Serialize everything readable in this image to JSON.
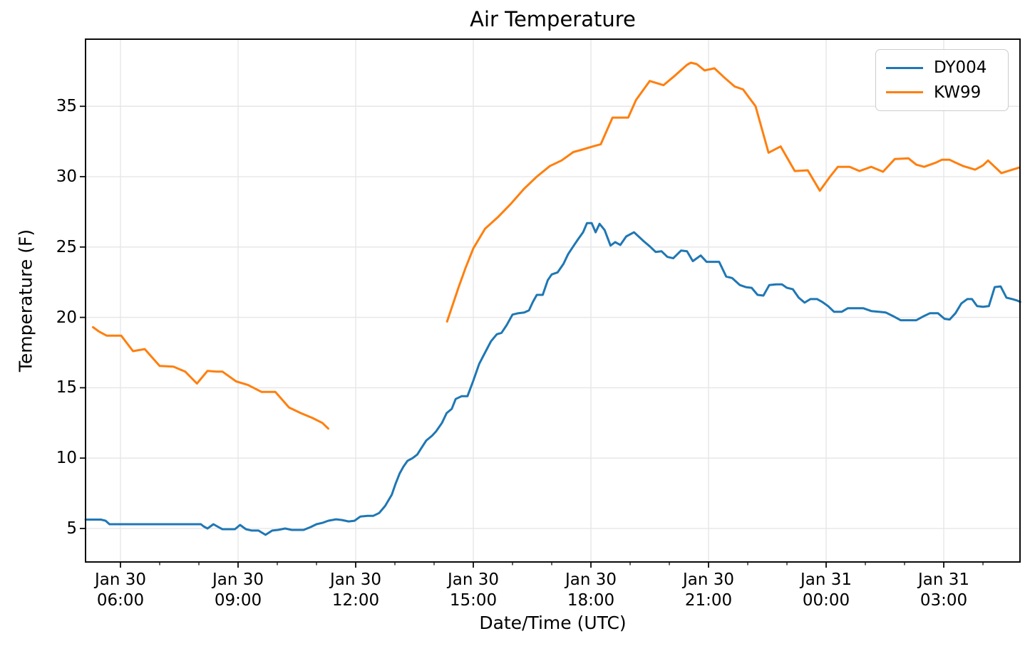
{
  "chart_data": {
    "type": "line",
    "title": "Air Temperature",
    "xlabel": "Date/Time (UTC)",
    "ylabel": "Temperature (F)",
    "x_unit": "hours_since_Jan30_0000_UTC",
    "xlim": [
      5.109,
      28.945
    ],
    "ylim": [
      2.62,
      39.77
    ],
    "grid": true,
    "grid_color": "#e6e6e6",
    "legend_position": "upper right",
    "y_ticks": [
      5,
      10,
      15,
      20,
      25,
      30,
      35
    ],
    "x_major_ticks": [
      {
        "t": 6,
        "label": "Jan 30\n06:00"
      },
      {
        "t": 9,
        "label": "Jan 30\n09:00"
      },
      {
        "t": 12,
        "label": "Jan 30\n12:00"
      },
      {
        "t": 15,
        "label": "Jan 30\n15:00"
      },
      {
        "t": 18,
        "label": "Jan 30\n18:00"
      },
      {
        "t": 21,
        "label": "Jan 30\n21:00"
      },
      {
        "t": 24,
        "label": "Jan 31\n00:00"
      },
      {
        "t": 27,
        "label": "Jan 31\n03:00"
      }
    ],
    "x_minor_ticks": [
      7,
      8,
      10,
      11,
      13,
      14,
      16,
      17,
      19,
      20,
      22,
      23,
      25,
      26,
      28
    ],
    "series": [
      {
        "name": "DY004",
        "color": "#1f77b4",
        "segments": [
          [
            [
              5.11,
              5.63
            ],
            [
              5.3,
              5.63
            ],
            [
              5.5,
              5.63
            ],
            [
              5.62,
              5.55
            ],
            [
              5.72,
              5.3
            ],
            [
              6.0,
              5.3
            ],
            [
              6.3,
              5.3
            ],
            [
              6.6,
              5.3
            ],
            [
              6.9,
              5.3
            ],
            [
              7.2,
              5.3
            ],
            [
              7.5,
              5.3
            ],
            [
              7.8,
              5.3
            ],
            [
              8.05,
              5.3
            ],
            [
              8.12,
              5.15
            ],
            [
              8.22,
              5.0
            ],
            [
              8.37,
              5.3
            ],
            [
              8.5,
              5.1
            ],
            [
              8.6,
              4.95
            ],
            [
              8.75,
              4.95
            ],
            [
              8.92,
              4.95
            ],
            [
              9.05,
              5.25
            ],
            [
              9.2,
              4.95
            ],
            [
              9.35,
              4.85
            ],
            [
              9.52,
              4.85
            ],
            [
              9.7,
              4.55
            ],
            [
              9.87,
              4.85
            ],
            [
              10.02,
              4.9
            ],
            [
              10.2,
              5.0
            ],
            [
              10.37,
              4.9
            ],
            [
              10.52,
              4.9
            ],
            [
              10.67,
              4.9
            ],
            [
              10.85,
              5.1
            ],
            [
              11.0,
              5.3
            ],
            [
              11.15,
              5.4
            ],
            [
              11.3,
              5.55
            ],
            [
              11.5,
              5.65
            ],
            [
              11.65,
              5.6
            ],
            [
              11.82,
              5.5
            ],
            [
              11.97,
              5.55
            ],
            [
              12.12,
              5.85
            ],
            [
              12.3,
              5.9
            ],
            [
              12.45,
              5.9
            ],
            [
              12.6,
              6.1
            ],
            [
              12.75,
              6.6
            ],
            [
              12.92,
              7.4
            ],
            [
              13.02,
              8.2
            ],
            [
              13.12,
              8.9
            ],
            [
              13.22,
              9.4
            ],
            [
              13.32,
              9.8
            ],
            [
              13.45,
              10.0
            ],
            [
              13.57,
              10.25
            ],
            [
              13.67,
              10.7
            ],
            [
              13.8,
              11.25
            ],
            [
              13.95,
              11.6
            ],
            [
              14.05,
              11.9
            ],
            [
              14.2,
              12.5
            ],
            [
              14.32,
              13.2
            ],
            [
              14.45,
              13.5
            ],
            [
              14.55,
              14.2
            ],
            [
              14.7,
              14.4
            ],
            [
              14.85,
              14.4
            ],
            [
              15.0,
              15.5
            ],
            [
              15.15,
              16.7
            ],
            [
              15.3,
              17.5
            ],
            [
              15.45,
              18.3
            ],
            [
              15.6,
              18.8
            ],
            [
              15.72,
              18.9
            ],
            [
              15.85,
              19.45
            ],
            [
              16.0,
              20.2
            ],
            [
              16.15,
              20.3
            ],
            [
              16.3,
              20.35
            ],
            [
              16.42,
              20.5
            ],
            [
              16.52,
              21.1
            ],
            [
              16.62,
              21.6
            ],
            [
              16.77,
              21.6
            ],
            [
              16.9,
              22.65
            ],
            [
              17.0,
              23.05
            ],
            [
              17.15,
              23.2
            ],
            [
              17.3,
              23.8
            ],
            [
              17.42,
              24.5
            ],
            [
              17.55,
              25.05
            ],
            [
              17.67,
              25.55
            ],
            [
              17.8,
              26.05
            ],
            [
              17.9,
              26.7
            ],
            [
              18.02,
              26.7
            ],
            [
              18.12,
              26.05
            ],
            [
              18.22,
              26.65
            ],
            [
              18.35,
              26.2
            ],
            [
              18.5,
              25.1
            ],
            [
              18.62,
              25.35
            ],
            [
              18.75,
              25.15
            ],
            [
              18.9,
              25.75
            ],
            [
              19.1,
              26.05
            ],
            [
              19.35,
              25.4
            ],
            [
              19.5,
              25.05
            ],
            [
              19.65,
              24.65
            ],
            [
              19.8,
              24.7
            ],
            [
              19.95,
              24.3
            ],
            [
              20.1,
              24.2
            ],
            [
              20.3,
              24.75
            ],
            [
              20.45,
              24.7
            ],
            [
              20.6,
              24.0
            ],
            [
              20.8,
              24.4
            ],
            [
              20.95,
              23.95
            ],
            [
              21.1,
              23.95
            ],
            [
              21.27,
              23.95
            ],
            [
              21.45,
              22.9
            ],
            [
              21.6,
              22.8
            ],
            [
              21.8,
              22.3
            ],
            [
              21.95,
              22.15
            ],
            [
              22.1,
              22.1
            ],
            [
              22.25,
              21.6
            ],
            [
              22.4,
              21.55
            ],
            [
              22.55,
              22.3
            ],
            [
              22.72,
              22.35
            ],
            [
              22.87,
              22.35
            ],
            [
              23.0,
              22.1
            ],
            [
              23.15,
              22.0
            ],
            [
              23.3,
              21.4
            ],
            [
              23.45,
              21.05
            ],
            [
              23.6,
              21.3
            ],
            [
              23.77,
              21.3
            ],
            [
              23.9,
              21.1
            ],
            [
              24.05,
              20.8
            ],
            [
              24.2,
              20.4
            ],
            [
              24.4,
              20.4
            ],
            [
              24.55,
              20.65
            ],
            [
              24.75,
              20.65
            ],
            [
              24.95,
              20.65
            ],
            [
              25.15,
              20.45
            ],
            [
              25.35,
              20.4
            ],
            [
              25.52,
              20.35
            ],
            [
              25.7,
              20.1
            ],
            [
              25.9,
              19.8
            ],
            [
              26.1,
              19.8
            ],
            [
              26.3,
              19.8
            ],
            [
              26.5,
              20.1
            ],
            [
              26.65,
              20.3
            ],
            [
              26.85,
              20.3
            ],
            [
              27.02,
              19.9
            ],
            [
              27.15,
              19.85
            ],
            [
              27.3,
              20.3
            ],
            [
              27.45,
              21.0
            ],
            [
              27.6,
              21.3
            ],
            [
              27.72,
              21.3
            ],
            [
              27.85,
              20.8
            ],
            [
              28.0,
              20.75
            ],
            [
              28.15,
              20.8
            ],
            [
              28.3,
              22.15
            ],
            [
              28.45,
              22.2
            ],
            [
              28.6,
              21.4
            ],
            [
              28.75,
              21.3
            ],
            [
              28.87,
              21.2
            ],
            [
              28.95,
              21.1
            ]
          ]
        ]
      },
      {
        "name": "KW99",
        "color": "#ff7f0e",
        "segments": [
          [
            [
              5.3,
              19.3
            ],
            [
              5.45,
              19.0
            ],
            [
              5.65,
              18.7
            ],
            [
              5.85,
              18.7
            ],
            [
              6.02,
              18.7
            ],
            [
              6.32,
              17.6
            ],
            [
              6.62,
              17.75
            ],
            [
              7.0,
              16.55
            ],
            [
              7.35,
              16.5
            ],
            [
              7.65,
              16.15
            ],
            [
              7.95,
              15.3
            ],
            [
              8.22,
              16.2
            ],
            [
              8.45,
              16.15
            ],
            [
              8.6,
              16.15
            ],
            [
              8.95,
              15.45
            ],
            [
              9.25,
              15.2
            ],
            [
              9.6,
              14.7
            ],
            [
              9.95,
              14.7
            ],
            [
              10.3,
              13.6
            ],
            [
              10.6,
              13.2
            ],
            [
              10.9,
              12.85
            ],
            [
              11.15,
              12.5
            ],
            [
              11.3,
              12.1
            ]
          ],
          [
            [
              14.33,
              19.7
            ],
            [
              14.62,
              22.1
            ],
            [
              14.8,
              23.5
            ],
            [
              15.0,
              24.9
            ],
            [
              15.3,
              26.3
            ],
            [
              15.62,
              27.1
            ],
            [
              15.95,
              28.05
            ],
            [
              16.3,
              29.15
            ],
            [
              16.62,
              30.0
            ],
            [
              16.95,
              30.75
            ],
            [
              17.25,
              31.15
            ],
            [
              17.55,
              31.75
            ],
            [
              17.75,
              31.9
            ],
            [
              18.05,
              32.15
            ],
            [
              18.25,
              32.3
            ],
            [
              18.55,
              34.2
            ],
            [
              18.95,
              34.2
            ],
            [
              19.15,
              35.45
            ],
            [
              19.5,
              36.8
            ],
            [
              19.85,
              36.5
            ],
            [
              20.15,
              37.2
            ],
            [
              20.45,
              37.95
            ],
            [
              20.55,
              38.1
            ],
            [
              20.7,
              38.0
            ],
            [
              20.9,
              37.55
            ],
            [
              21.15,
              37.7
            ],
            [
              21.4,
              37.05
            ],
            [
              21.67,
              36.4
            ],
            [
              21.88,
              36.2
            ],
            [
              22.2,
              35.0
            ],
            [
              22.53,
              31.7
            ],
            [
              22.84,
              32.15
            ],
            [
              23.2,
              30.4
            ],
            [
              23.53,
              30.45
            ],
            [
              23.84,
              29.0
            ],
            [
              24.1,
              30.0
            ],
            [
              24.3,
              30.7
            ],
            [
              24.6,
              30.7
            ],
            [
              24.85,
              30.4
            ],
            [
              25.15,
              30.7
            ],
            [
              25.45,
              30.35
            ],
            [
              25.75,
              31.25
            ],
            [
              26.1,
              31.3
            ],
            [
              26.3,
              30.85
            ],
            [
              26.5,
              30.7
            ],
            [
              26.8,
              31.0
            ],
            [
              26.95,
              31.2
            ],
            [
              27.15,
              31.2
            ],
            [
              27.3,
              31.0
            ],
            [
              27.5,
              30.75
            ],
            [
              27.8,
              30.5
            ],
            [
              28.0,
              30.8
            ],
            [
              28.13,
              31.15
            ],
            [
              28.3,
              30.7
            ],
            [
              28.47,
              30.25
            ],
            [
              28.7,
              30.45
            ],
            [
              28.93,
              30.65
            ]
          ]
        ]
      }
    ]
  }
}
